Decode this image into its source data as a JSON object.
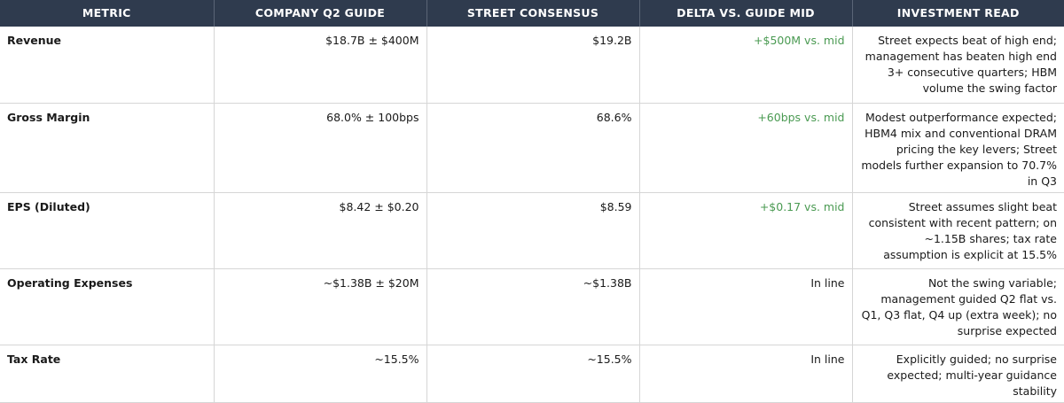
{
  "table": {
    "headers": [
      "METRIC",
      "COMPANY Q2 GUIDE",
      "STREET CONSENSUS",
      "DELTA VS. GUIDE MID",
      "INVESTMENT READ"
    ],
    "rows": [
      {
        "metric": "Revenue",
        "guide": "$18.7B ± $400M",
        "consensus": "$19.2B",
        "delta": "+$500M vs. mid",
        "delta_tone": "positive",
        "read": "Street expects beat of high end; management has beaten high end 3+ consecutive quarters; HBM volume the swing factor"
      },
      {
        "metric": "Gross Margin",
        "guide": "68.0% ± 100bps",
        "consensus": "68.6%",
        "delta": "+60bps vs. mid",
        "delta_tone": "positive",
        "read": "Modest outperformance expected; HBM4 mix and conventional DRAM pricing the key levers; Street models further expansion to 70.7% in Q3"
      },
      {
        "metric": "EPS (Diluted)",
        "guide": "$8.42 ± $0.20",
        "consensus": "$8.59",
        "delta": "+$0.17 vs. mid",
        "delta_tone": "positive",
        "read": "Street assumes slight beat consistent with recent pattern; on ~1.15B shares; tax rate assumption is explicit at 15.5%"
      },
      {
        "metric": "Operating Expenses",
        "guide": "~$1.38B ± $20M",
        "consensus": "~$1.38B",
        "delta": "In line",
        "delta_tone": "neutral",
        "read": "Not the swing variable; management guided Q2 flat vs. Q1, Q3 flat, Q4 up (extra week); no surprise expected"
      },
      {
        "metric": "Tax Rate",
        "guide": "~15.5%",
        "consensus": "~15.5%",
        "delta": "In line",
        "delta_tone": "neutral",
        "read": "Explicitly guided; no surprise expected; multi-year guidance stability"
      }
    ]
  },
  "colors": {
    "header_bg": "#2f3b4e",
    "header_text": "#ffffff",
    "positive": "#4a9a52",
    "grid": "#d6d6d6"
  }
}
